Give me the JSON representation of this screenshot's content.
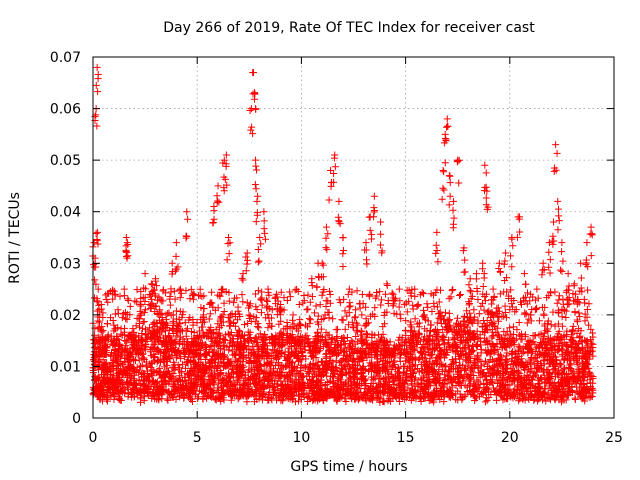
{
  "chart_data": {
    "type": "scatter",
    "title": "Day 266 of 2019, Rate Of TEC Index for receiver cast",
    "xlabel": "GPS time / hours",
    "ylabel": "ROTI / TECUs",
    "xlim": [
      0,
      25
    ],
    "ylim": [
      0,
      0.07
    ],
    "x_ticks": [
      0,
      5,
      10,
      15,
      20,
      25
    ],
    "x_tick_labels": [
      "0",
      "5",
      "10",
      "15",
      "20",
      "25"
    ],
    "y_ticks": [
      0,
      0.01,
      0.02,
      0.03,
      0.04,
      0.05,
      0.06,
      0.07
    ],
    "y_tick_labels": [
      "0",
      "0.01",
      "0.02",
      "0.03",
      "0.04",
      "0.05",
      "0.06",
      "0.07"
    ],
    "grid": true,
    "marker": "+",
    "color": "#ff0000",
    "series": [
      {
        "name": "ROTI",
        "x": [
          0.05,
          0.1,
          0.15,
          0.2,
          0.22,
          0.25,
          0.3,
          0.4,
          0.5,
          0.6,
          0.8,
          1.0,
          1.2,
          1.5,
          1.6,
          1.65,
          1.7,
          2.0,
          2.3,
          2.5,
          2.8,
          3.0,
          3.2,
          3.5,
          3.8,
          4.0,
          4.2,
          4.5,
          4.8,
          5.0,
          5.3,
          5.6,
          5.8,
          6.0,
          6.2,
          6.3,
          6.4,
          6.5,
          6.6,
          7.0,
          7.2,
          7.4,
          7.6,
          7.7,
          7.75,
          7.8,
          7.9,
          8.0,
          8.2,
          8.4,
          8.6,
          8.8,
          9.0,
          9.3,
          9.6,
          9.9,
          10.2,
          10.5,
          10.8,
          11.0,
          11.2,
          11.4,
          11.6,
          11.8,
          12.0,
          12.3,
          12.6,
          12.9,
          13.1,
          13.3,
          13.5,
          13.8,
          14.1,
          14.4,
          14.7,
          15.0,
          15.3,
          15.6,
          15.9,
          16.2,
          16.5,
          16.8,
          16.9,
          17.0,
          17.1,
          17.3,
          17.5,
          17.8,
          18.1,
          18.4,
          18.7,
          18.8,
          18.9,
          19.2,
          19.5,
          19.8,
          20.1,
          20.4,
          20.7,
          21.0,
          21.3,
          21.6,
          21.9,
          22.1,
          22.2,
          22.3,
          22.5,
          22.8,
          23.1,
          23.4,
          23.7,
          23.9
        ],
        "y": [
          0.034,
          0.031,
          0.06,
          0.068,
          0.036,
          0.025,
          0.02,
          0.022,
          0.013,
          0.015,
          0.01,
          0.018,
          0.021,
          0.025,
          0.035,
          0.034,
          0.012,
          0.015,
          0.022,
          0.028,
          0.026,
          0.027,
          0.021,
          0.02,
          0.03,
          0.034,
          0.025,
          0.04,
          0.018,
          0.016,
          0.02,
          0.022,
          0.041,
          0.045,
          0.025,
          0.05,
          0.051,
          0.035,
          0.02,
          0.017,
          0.028,
          0.032,
          0.06,
          0.067,
          0.063,
          0.05,
          0.043,
          0.035,
          0.04,
          0.025,
          0.021,
          0.024,
          0.022,
          0.016,
          0.02,
          0.022,
          0.018,
          0.027,
          0.03,
          0.03,
          0.037,
          0.048,
          0.051,
          0.042,
          0.035,
          0.025,
          0.021,
          0.02,
          0.034,
          0.039,
          0.043,
          0.038,
          0.026,
          0.024,
          0.025,
          0.017,
          0.016,
          0.022,
          0.02,
          0.018,
          0.036,
          0.048,
          0.055,
          0.058,
          0.047,
          0.042,
          0.05,
          0.033,
          0.027,
          0.028,
          0.03,
          0.049,
          0.044,
          0.025,
          0.03,
          0.032,
          0.035,
          0.039,
          0.028,
          0.024,
          0.025,
          0.03,
          0.034,
          0.038,
          0.053,
          0.042,
          0.034,
          0.028,
          0.026,
          0.03,
          0.034,
          0.037
        ]
      }
    ],
    "background_band": {
      "description_note": "dense low-ROTI cloud across full day",
      "y_min": 0.003,
      "y_max": 0.015
    }
  }
}
